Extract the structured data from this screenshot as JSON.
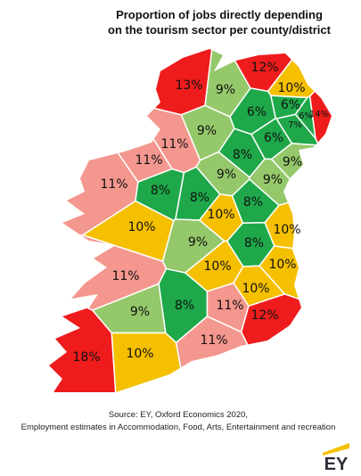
{
  "header": {
    "title_lines": [
      "Proportion of jobs directly depending",
      "on the tourism sector per county/district"
    ]
  },
  "regions": [
    {
      "label": "13%",
      "color": "#ee1c1c"
    },
    {
      "label": "12%",
      "color": "#ee1c1c"
    },
    {
      "label": "10%",
      "color": "#f5c000"
    },
    {
      "label": "9%",
      "color": "#95c86a"
    },
    {
      "label": "6%",
      "color": "#1ea84a"
    },
    {
      "label": "6%",
      "color": "#1ea84a"
    },
    {
      "label": "6%",
      "color": "#1ea84a"
    },
    {
      "label": "14%",
      "color": "#ee1c1c"
    },
    {
      "label": "7%",
      "color": "#1ea84a"
    },
    {
      "label": "9%",
      "color": "#95c86a"
    },
    {
      "label": "6%",
      "color": "#1ea84a"
    },
    {
      "label": "11%",
      "color": "#f4978e"
    },
    {
      "label": "11%",
      "color": "#f4978e"
    },
    {
      "label": "8%",
      "color": "#1ea84a"
    },
    {
      "label": "9%",
      "color": "#95c86a"
    },
    {
      "label": "11%",
      "color": "#f4978e"
    },
    {
      "label": "8%",
      "color": "#1ea84a"
    },
    {
      "label": "9%",
      "color": "#95c86a"
    },
    {
      "label": "9%",
      "color": "#95c86a"
    },
    {
      "label": "8%",
      "color": "#1ea84a"
    },
    {
      "label": "8%",
      "color": "#1ea84a"
    },
    {
      "label": "10%",
      "color": "#f5c000"
    },
    {
      "label": "10%",
      "color": "#f5c000"
    },
    {
      "label": "10%",
      "color": "#f5c000"
    },
    {
      "label": "9%",
      "color": "#95c86a"
    },
    {
      "label": "8%",
      "color": "#1ea84a"
    },
    {
      "label": "10%",
      "color": "#f5c000"
    },
    {
      "label": "10%",
      "color": "#f5c000"
    },
    {
      "label": "11%",
      "color": "#f4978e"
    },
    {
      "label": "10%",
      "color": "#f5c000"
    },
    {
      "label": "8%",
      "color": "#1ea84a"
    },
    {
      "label": "11%",
      "color": "#f4978e"
    },
    {
      "label": "9%",
      "color": "#95c86a"
    },
    {
      "label": "12%",
      "color": "#ee1c1c"
    },
    {
      "label": "11%",
      "color": "#f4978e"
    },
    {
      "label": "18%",
      "color": "#ee1c1c"
    },
    {
      "label": "10%",
      "color": "#f5c000"
    }
  ],
  "footer": {
    "source_lines": [
      "Source: EY, Oxford Economics 2020,",
      "Employment estimates in Accommodation, Food, Arts, Entertainment and recreation"
    ],
    "logo": "EY"
  }
}
